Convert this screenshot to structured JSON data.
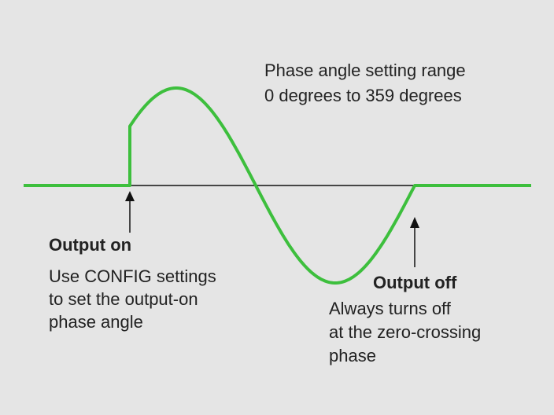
{
  "range_label": {
    "line1": "Phase angle setting range",
    "line2": "0 degrees to 359 degrees"
  },
  "output_on": {
    "title": "Output on",
    "lines": [
      "Use CONFIG settings",
      "to set the output-on",
      "phase angle"
    ]
  },
  "output_off": {
    "title": "Output off",
    "lines": [
      "Always turns off",
      "at the zero-crossing",
      "phase"
    ]
  },
  "colors": {
    "waveform": "#3dbf3d",
    "baseline": "#111111",
    "background": "#e5e5e5"
  }
}
